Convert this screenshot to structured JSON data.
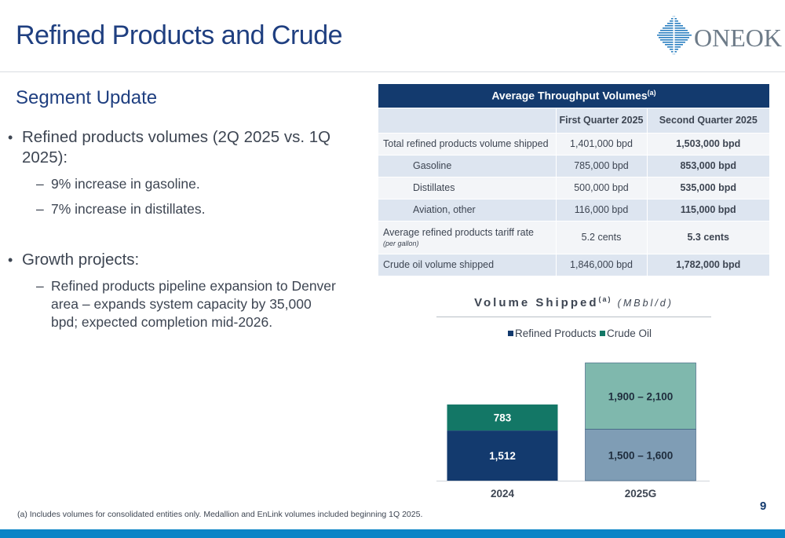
{
  "header": {
    "title": "Refined Products and Crude",
    "logo_text": "ONEOK"
  },
  "segment": {
    "title": "Segment Update",
    "bullets": [
      {
        "text": "Refined products volumes (2Q 2025 vs. 1Q 2025):",
        "subs": [
          "9% increase in gasoline.",
          "7% increase in distillates."
        ]
      },
      {
        "text": "Growth projects:",
        "subs": [
          "Refined products pipeline expansion to Denver area – expands system capacity by 35,000 bpd; expected completion mid-2026."
        ]
      }
    ]
  },
  "table": {
    "caption": "Average Throughput Volumes",
    "caption_note": "(a)",
    "headers": [
      "First Quarter 2025",
      "Second Quarter 2025"
    ],
    "rows": [
      {
        "label": "Total refined products volume shipped",
        "q1": "1,401,000 bpd",
        "q2": "1,503,000 bpd"
      },
      {
        "label": "Gasoline",
        "q1": "785,000 bpd",
        "q2": "853,000 bpd"
      },
      {
        "label": "Distillates",
        "q1": "500,000 bpd",
        "q2": "535,000 bpd"
      },
      {
        "label": "Aviation, other",
        "q1": "116,000 bpd",
        "q2": "115,000 bpd"
      },
      {
        "label": "Average refined products tariff rate",
        "sublabel": "(per gallon)",
        "q1": "5.2 cents",
        "q2": "5.3 cents"
      },
      {
        "label": "Crude oil volume shipped",
        "q1": "1,846,000 bpd",
        "q2": "1,782,000 bpd"
      }
    ]
  },
  "chart_data": {
    "type": "bar",
    "stacked": true,
    "title": "Volume Shipped",
    "title_note": "(a)",
    "unit": "(MBbl/d)",
    "categories": [
      "2024",
      "2025G"
    ],
    "series": [
      {
        "name": "Refined Products",
        "values": [
          1512,
          1550
        ],
        "ranges": [
          null,
          [
            1500,
            1600
          ]
        ],
        "labels": [
          "1,512",
          "1,500 – 1,600"
        ],
        "colors": [
          "#133a6e",
          "#7f9db5"
        ]
      },
      {
        "name": "Crude Oil",
        "values": [
          783,
          2000
        ],
        "ranges": [
          null,
          [
            1900,
            2100
          ]
        ],
        "labels": [
          "783",
          "1,900 – 2,100"
        ],
        "colors": [
          "#137766",
          "#7fb8ad"
        ]
      }
    ],
    "legend": "top-center",
    "grid": false
  },
  "footnote": "(a) Includes volumes for consolidated entities only. Medallion and EnLink volumes included beginning 1Q 2025.",
  "page_number": "9",
  "colors": {
    "title": "#1f3f80",
    "navy": "#133a6e",
    "accent_bar": "#0a84c6"
  }
}
